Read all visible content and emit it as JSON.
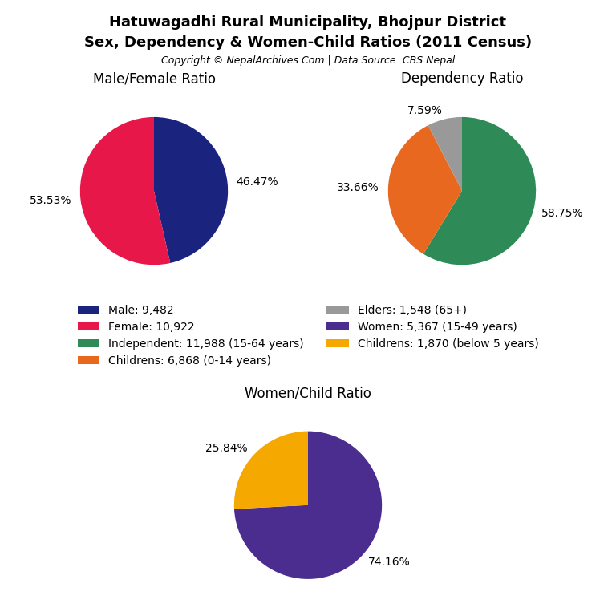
{
  "title": "Hatuwagadhi Rural Municipality, Bhojpur District",
  "subtitle": "Sex, Dependency & Women-Child Ratios (2011 Census)",
  "annotations": [
    "Copyright © NepalArchives.Com | Data Source: CBS Nepal"
  ],
  "legend": "center",
  "chart_data": [
    {
      "type": "pie",
      "title": "Male/Female Ratio",
      "categories": [
        "Male: 9,482",
        "Female: 10,922"
      ],
      "values": [
        46.47,
        53.53
      ],
      "value_labels": [
        "46.47%",
        "53.53%"
      ],
      "colors": [
        "#1a237e",
        "#e8174a"
      ],
      "data_labels": true
    },
    {
      "type": "pie",
      "title": "Dependency Ratio",
      "categories": [
        "Independent: 11,988 (15-64 years)",
        "Childrens: 6,868 (0-14 years)",
        "Elders: 1,548 (65+)"
      ],
      "values": [
        58.75,
        33.66,
        7.59
      ],
      "value_labels": [
        "58.75%",
        "33.66%",
        "7.59%"
      ],
      "colors": [
        "#2e8b57",
        "#e86820",
        "#999999"
      ],
      "data_labels": true
    },
    {
      "type": "pie",
      "title": "Women/Child Ratio",
      "categories": [
        "Women: 5,367 (15-49 years)",
        "Childrens: 1,870 (below 5 years)"
      ],
      "values": [
        74.16,
        25.84
      ],
      "value_labels": [
        "74.16%",
        "25.84%"
      ],
      "colors": [
        "#4b2d8f",
        "#f5a800"
      ],
      "data_labels": true
    }
  ]
}
